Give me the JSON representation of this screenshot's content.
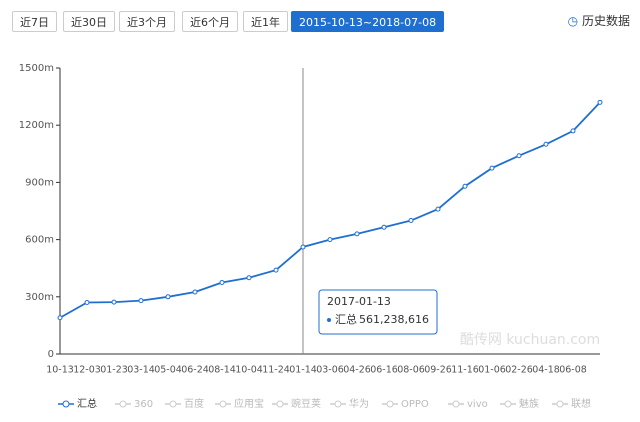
{
  "ranges": [
    "近7日",
    "近30日",
    "近3个月",
    "近6个月",
    "近1年",
    "2015-10-13~2018-07-08"
  ],
  "history_link": "历史数据",
  "chart_data": {
    "type": "line",
    "categories": [
      "10-13",
      "12-03",
      "01-23",
      "03-14",
      "05-04",
      "06-24",
      "08-14",
      "10-04",
      "11-24",
      "01-14",
      "03-06",
      "04-26",
      "06-16",
      "08-06",
      "09-26",
      "11-16",
      "01-06",
      "02-26",
      "04-18",
      "06-08",
      null
    ],
    "series": [
      {
        "name": "汇总",
        "color": "#1f6fd1",
        "values": [
          190000000,
          270000000,
          272000000,
          280000000,
          300000000,
          325000000,
          375000000,
          400000000,
          440000000,
          561238616,
          600000000,
          630000000,
          665000000,
          700000000,
          760000000,
          880000000,
          975000000,
          1040000000,
          1100000000,
          1170000000,
          1320000000
        ]
      },
      {
        "name": "360",
        "color": "#cccccc"
      },
      {
        "name": "百度",
        "color": "#cccccc"
      },
      {
        "name": "应用宝",
        "color": "#cccccc"
      },
      {
        "name": "豌豆荚",
        "color": "#cccccc"
      },
      {
        "name": "华为",
        "color": "#cccccc"
      },
      {
        "name": "OPPO",
        "color": "#cccccc"
      },
      {
        "name": "vivo",
        "color": "#cccccc"
      },
      {
        "name": "魅族",
        "color": "#cccccc"
      },
      {
        "name": "联想",
        "color": "#cccccc"
      }
    ],
    "ylim": [
      0,
      1500000000
    ],
    "yticks": [
      0,
      {
        "value": 300000000,
        "label": "300m"
      },
      {
        "value": 600000000,
        "label": "600m"
      },
      {
        "value": 900000000,
        "label": "900m"
      },
      {
        "value": 1200000000,
        "label": "1200m"
      },
      {
        "value": 1500000000,
        "label": "1500m"
      }
    ],
    "tooltip": {
      "index": 9,
      "title": "2017-01-13",
      "value_label": "561,238,616"
    },
    "watermark": "酷传网 kuchuan.com"
  }
}
